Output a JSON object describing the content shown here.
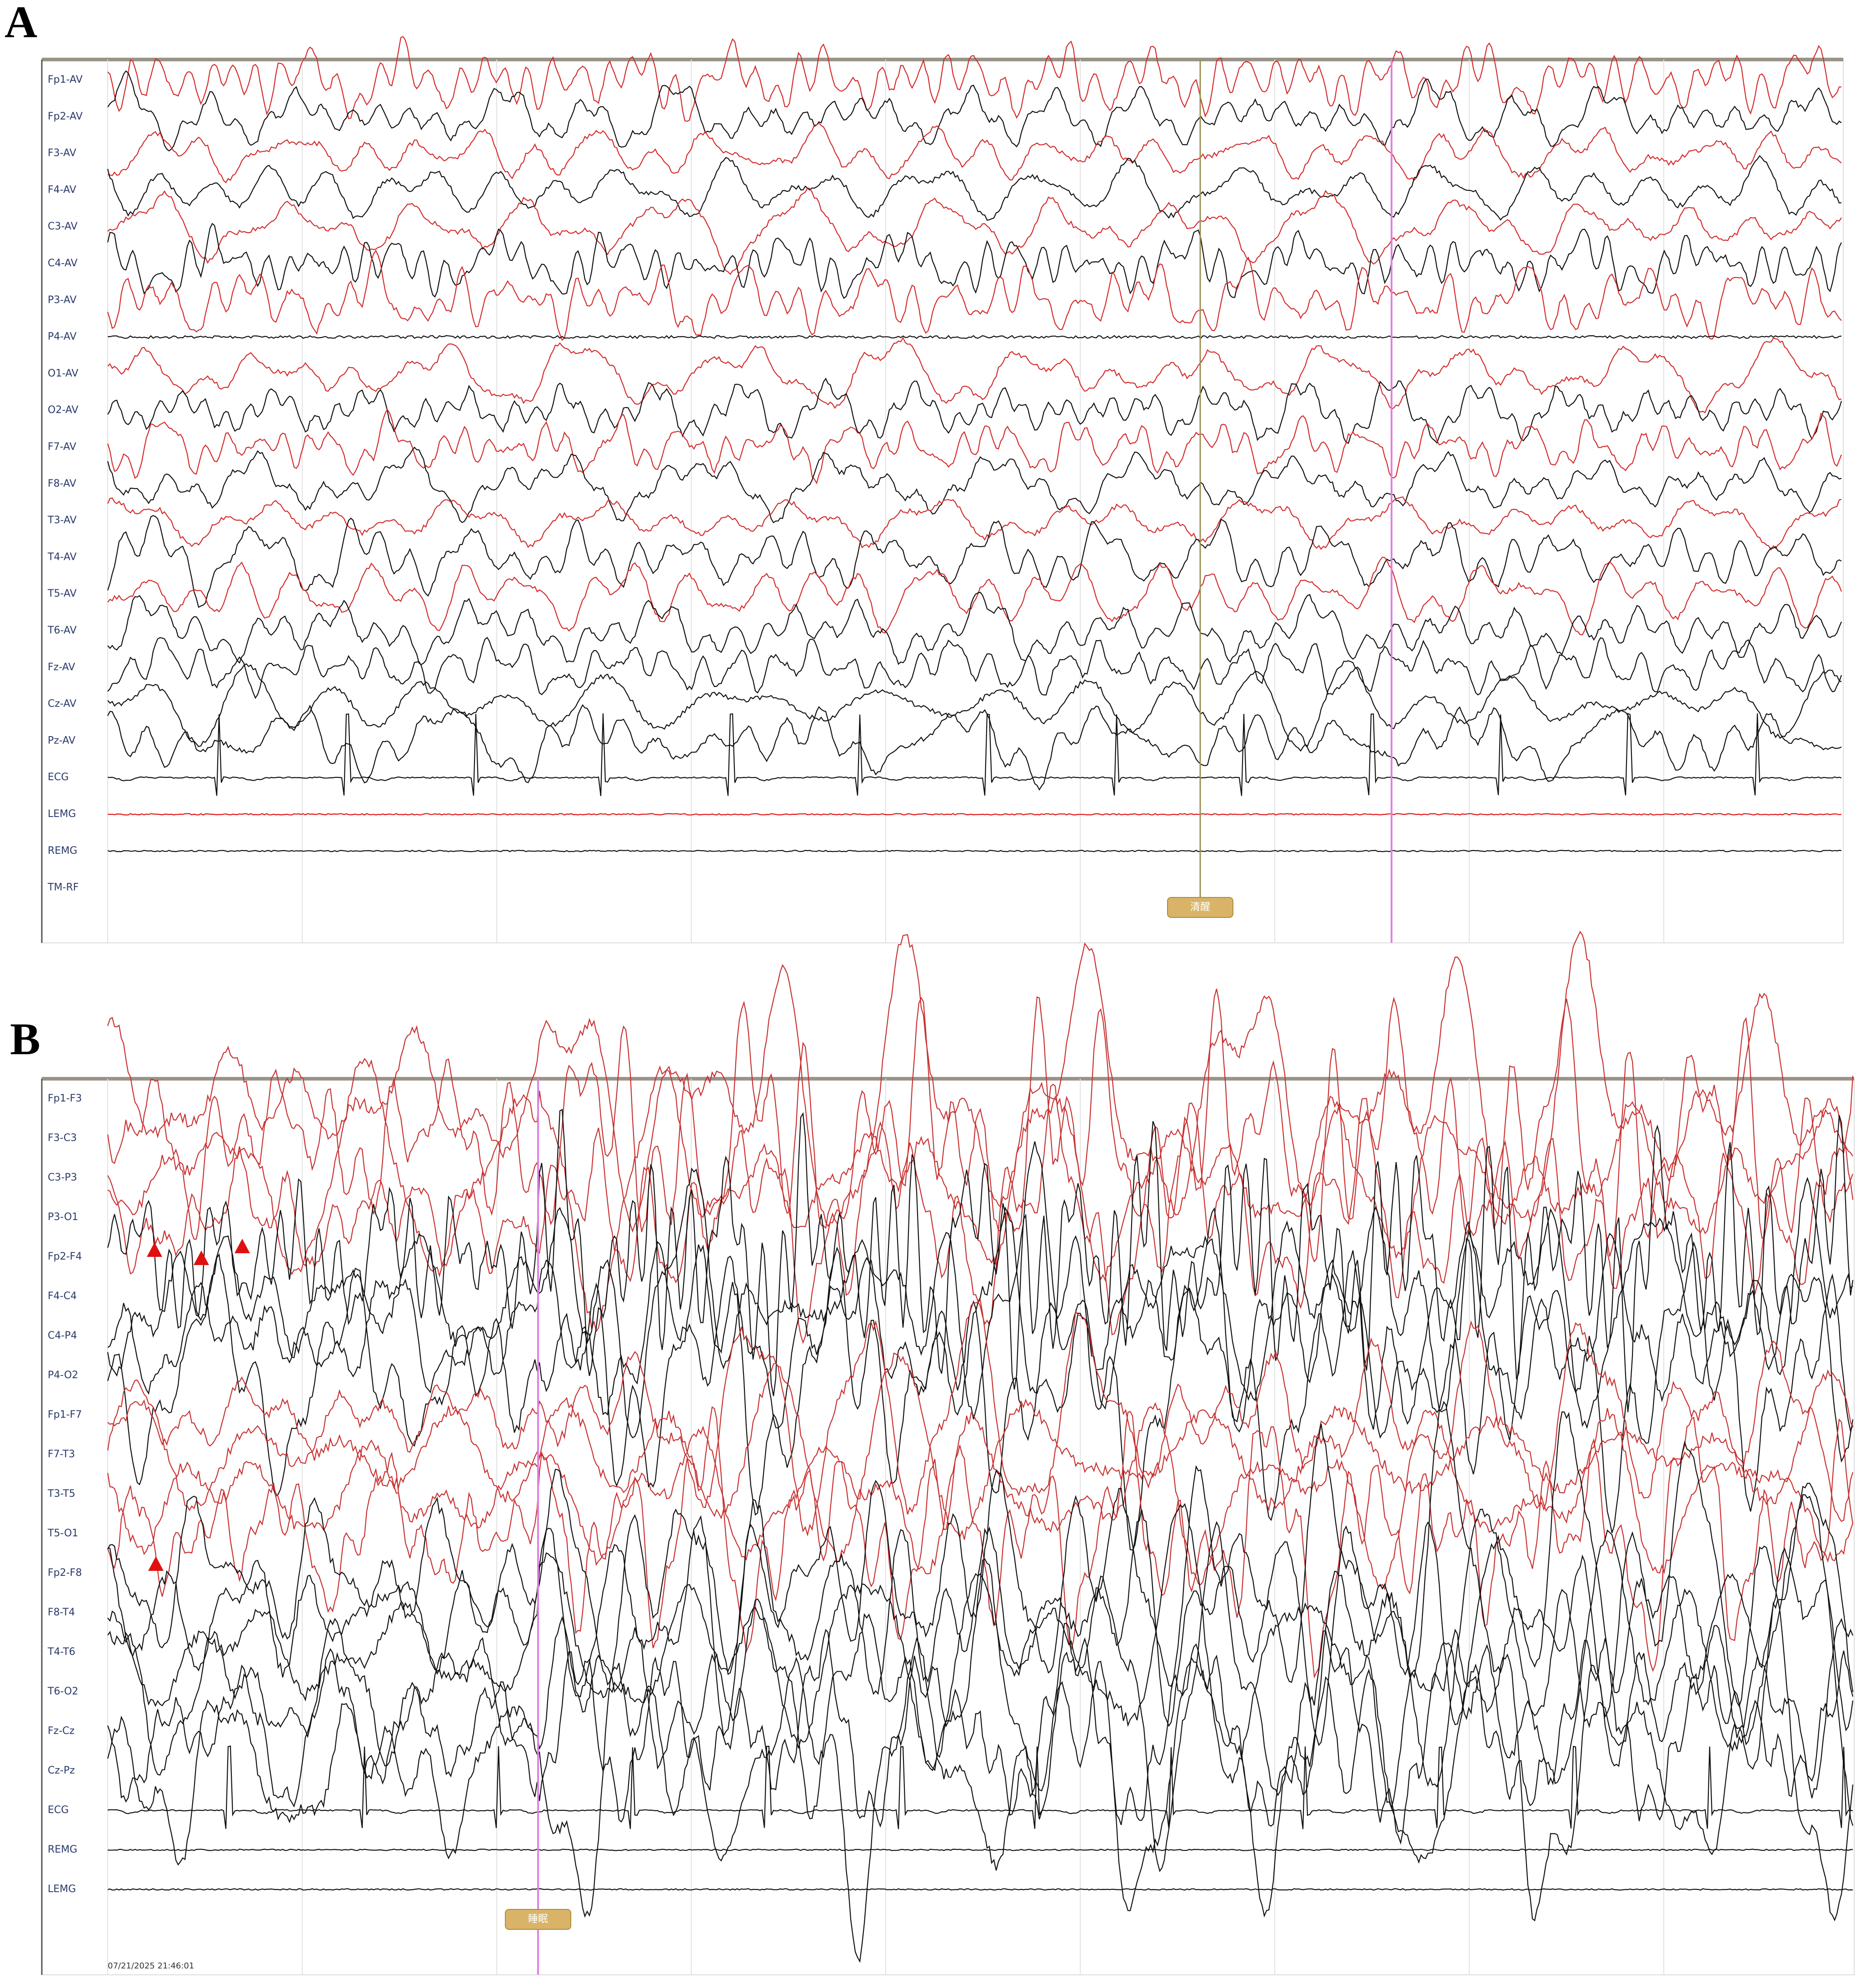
{
  "panels": [
    {
      "label": "A",
      "channels": [
        {
          "name": "Fp1-AV",
          "color": "#d42a2a"
        },
        {
          "name": "Fp2-AV",
          "color": "#111111"
        },
        {
          "name": "F3-AV",
          "color": "#d42a2a"
        },
        {
          "name": "F4-AV",
          "color": "#111111"
        },
        {
          "name": "C3-AV",
          "color": "#d42a2a"
        },
        {
          "name": "C4-AV",
          "color": "#111111"
        },
        {
          "name": "P3-AV",
          "color": "#d42a2a"
        },
        {
          "name": "P4-AV",
          "color": "#111111"
        },
        {
          "name": "O1-AV",
          "color": "#d42a2a"
        },
        {
          "name": "O2-AV",
          "color": "#111111"
        },
        {
          "name": "F7-AV",
          "color": "#d42a2a"
        },
        {
          "name": "F8-AV",
          "color": "#111111"
        },
        {
          "name": "T3-AV",
          "color": "#d42a2a"
        },
        {
          "name": "T4-AV",
          "color": "#111111"
        },
        {
          "name": "T5-AV",
          "color": "#d42a2a"
        },
        {
          "name": "T6-AV",
          "color": "#111111"
        },
        {
          "name": "Fz-AV",
          "color": "#111111"
        },
        {
          "name": "Cz-AV",
          "color": "#111111"
        },
        {
          "name": "Pz-AV",
          "color": "#111111"
        },
        {
          "name": "ECG",
          "color": "#111111"
        },
        {
          "name": "LEMG",
          "color": "#e01010"
        },
        {
          "name": "REMG",
          "color": "#111111"
        },
        {
          "name": "TM-RF",
          "color": "#111111"
        }
      ],
      "marker": "清醒"
    },
    {
      "label": "B",
      "channels": [
        {
          "name": "Fp1-F3",
          "color": "#c83030"
        },
        {
          "name": "F3-C3",
          "color": "#c83030"
        },
        {
          "name": "C3-P3",
          "color": "#c83030"
        },
        {
          "name": "P3-O1",
          "color": "#c83030"
        },
        {
          "name": "Fp2-F4",
          "color": "#111111"
        },
        {
          "name": "F4-C4",
          "color": "#111111"
        },
        {
          "name": "C4-P4",
          "color": "#111111"
        },
        {
          "name": "P4-O2",
          "color": "#111111"
        },
        {
          "name": "Fp1-F7",
          "color": "#c83030"
        },
        {
          "name": "F7-T3",
          "color": "#c83030"
        },
        {
          "name": "T3-T5",
          "color": "#c83030"
        },
        {
          "name": "T5-O1",
          "color": "#c83030"
        },
        {
          "name": "Fp2-F8",
          "color": "#111111"
        },
        {
          "name": "F8-T4",
          "color": "#111111"
        },
        {
          "name": "T4-T6",
          "color": "#111111"
        },
        {
          "name": "T6-O2",
          "color": "#111111"
        },
        {
          "name": "Fz-Cz",
          "color": "#111111"
        },
        {
          "name": "Cz-Pz",
          "color": "#111111"
        },
        {
          "name": "ECG",
          "color": "#111111"
        },
        {
          "name": "REMG",
          "color": "#111111"
        },
        {
          "name": "LEMG",
          "color": "#111111"
        }
      ],
      "marker": "睡眠",
      "timestamp": "07/21/2025 21:46:01"
    }
  ]
}
